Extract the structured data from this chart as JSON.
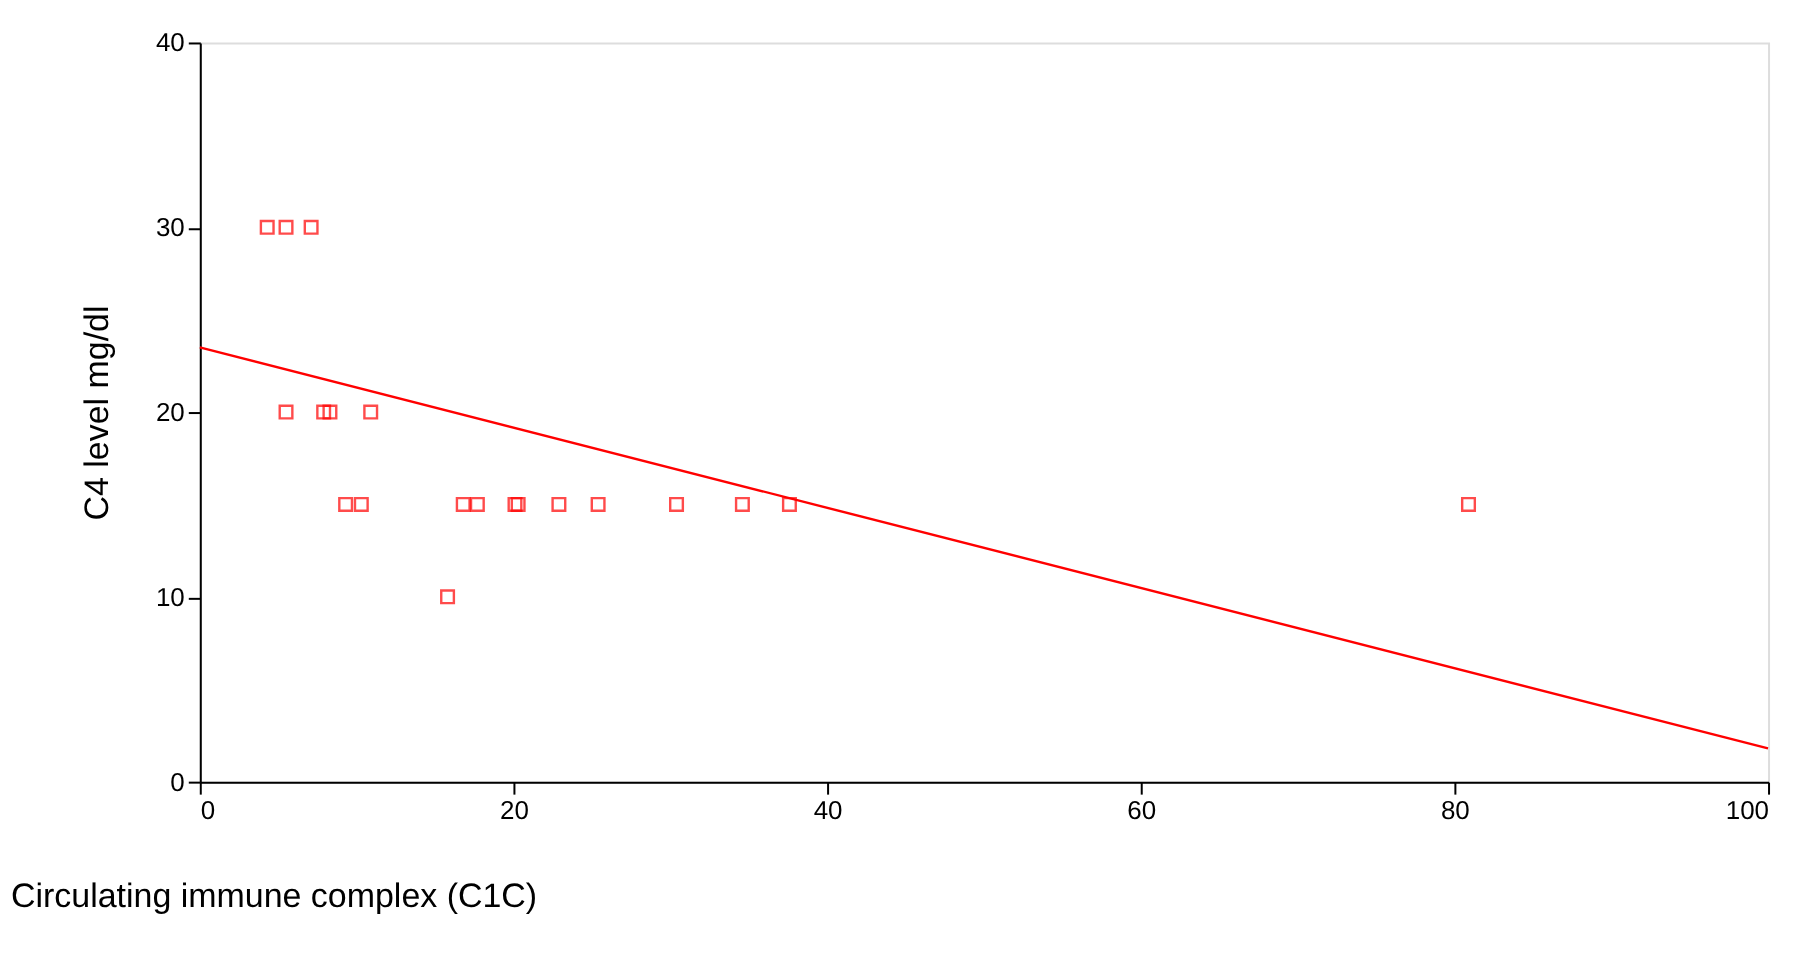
{
  "chart_data": {
    "type": "scatter",
    "xlabel": "Circulating immune complex (C1C)",
    "ylabel": "C4 level  mg/dl",
    "xlim": [
      0,
      100
    ],
    "xticks": [
      0,
      20,
      40,
      60,
      80,
      100
    ],
    "ylim": [
      0,
      40
    ],
    "yticks": [
      0,
      10,
      20,
      30,
      40
    ],
    "grid": false,
    "series": [
      {
        "color": "#ff0000",
        "marker": "square",
        "x": [
          4.3,
          5.5,
          7.1,
          5.5,
          7.9,
          8.3,
          10.9,
          9.3,
          10.3,
          16.8,
          17.7,
          20.1,
          20.3,
          22.9,
          25.4,
          30.4,
          34.6,
          37.6,
          80.9,
          15.8
        ],
        "values": [
          30,
          30,
          30,
          20,
          20,
          20,
          20,
          15,
          15,
          15,
          15,
          15,
          15,
          15,
          15,
          15,
          15,
          15,
          15,
          10
        ]
      },
      {
        "type": "line",
        "color": "#ff0000",
        "x": [
          0,
          100
        ],
        "values": [
          23.5,
          1.8
        ]
      }
    ]
  }
}
